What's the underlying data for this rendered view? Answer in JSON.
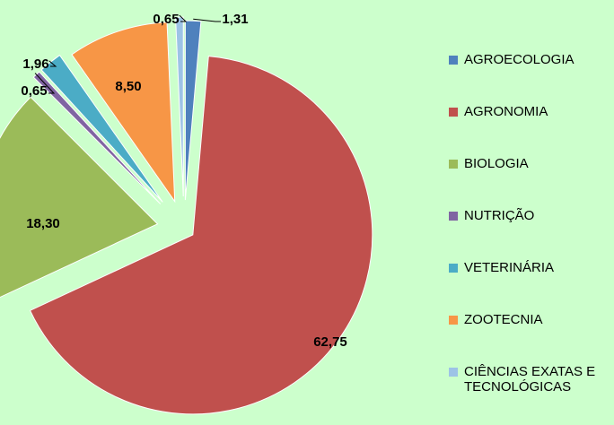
{
  "chart_data": {
    "type": "pie",
    "categories": [
      "AGROECOLOGIA",
      "AGRONOMIA",
      "BIOLOGIA",
      "NUTRIÇÃO",
      "VETERINÁRIA",
      "ZOOTECNIA",
      "CIÊNCIAS EXATAS E TECNOLÓGICAS"
    ],
    "values": [
      1.31,
      62.75,
      18.3,
      0.65,
      1.96,
      8.5,
      0.65
    ],
    "value_labels": [
      "1,31",
      "62,75",
      "18,30",
      "0,65",
      "1,96",
      "8,50",
      "0,65"
    ],
    "colors": [
      "#4f81bd",
      "#c0504d",
      "#9bbb59",
      "#8064a2",
      "#4bacc6",
      "#f79646",
      "#9dc3e6"
    ],
    "legend": "right"
  }
}
